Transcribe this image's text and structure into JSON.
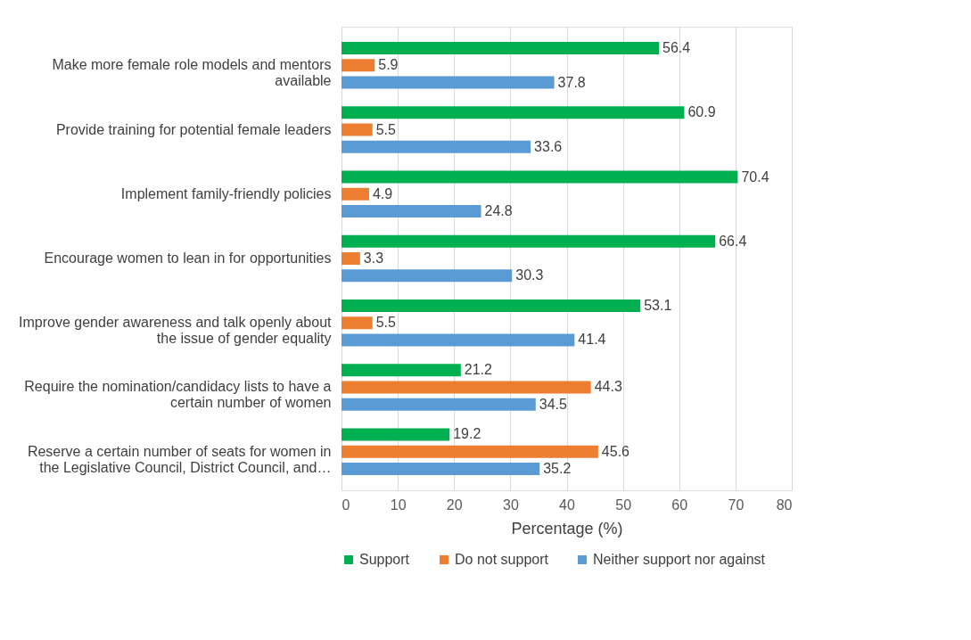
{
  "chart_data": {
    "type": "bar",
    "orientation": "horizontal",
    "xlabel": "Percentage (%)",
    "categories": [
      "Make more female role models and mentors available",
      "Provide training for potential female leaders",
      "Implement family-friendly policies",
      "Encourage women to lean in for opportunities",
      "Improve gender awareness and talk openly about the issue of gender equality",
      "Require the nomination/candidacy lists to have a certain number of women",
      "Reserve a certain number of seats for women in the Legislative Council, District Council, and…"
    ],
    "series": [
      {
        "name": "Support",
        "color": "#00b050",
        "values": [
          56.4,
          60.9,
          70.4,
          66.4,
          53.1,
          21.2,
          19.2
        ]
      },
      {
        "name": "Do not support",
        "color": "#ed7d31",
        "values": [
          5.9,
          5.5,
          4.9,
          3.3,
          5.5,
          44.3,
          45.6
        ]
      },
      {
        "name": "Neither support nor against",
        "color": "#5b9bd5",
        "values": [
          37.8,
          33.6,
          24.8,
          30.3,
          41.4,
          34.5,
          35.2
        ]
      }
    ],
    "xlim": [
      0,
      80
    ],
    "xticks": [
      0,
      10,
      20,
      30,
      40,
      50,
      60,
      70,
      80
    ],
    "grid": "x",
    "legend": "bottom",
    "data_labels": true
  }
}
